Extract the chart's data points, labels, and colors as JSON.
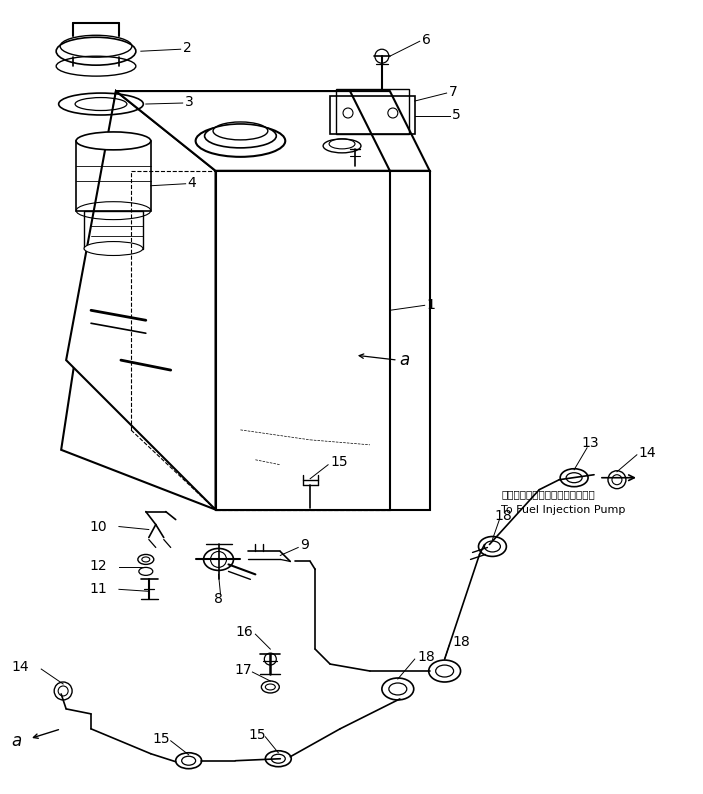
{
  "bg_color": "#ffffff",
  "line_color": "#000000",
  "fig_width": 7.03,
  "fig_height": 7.94,
  "dpi": 100,
  "japanese_text": "フェルインジェクションボンプへ",
  "english_text": "To Fuel Injection Pump"
}
